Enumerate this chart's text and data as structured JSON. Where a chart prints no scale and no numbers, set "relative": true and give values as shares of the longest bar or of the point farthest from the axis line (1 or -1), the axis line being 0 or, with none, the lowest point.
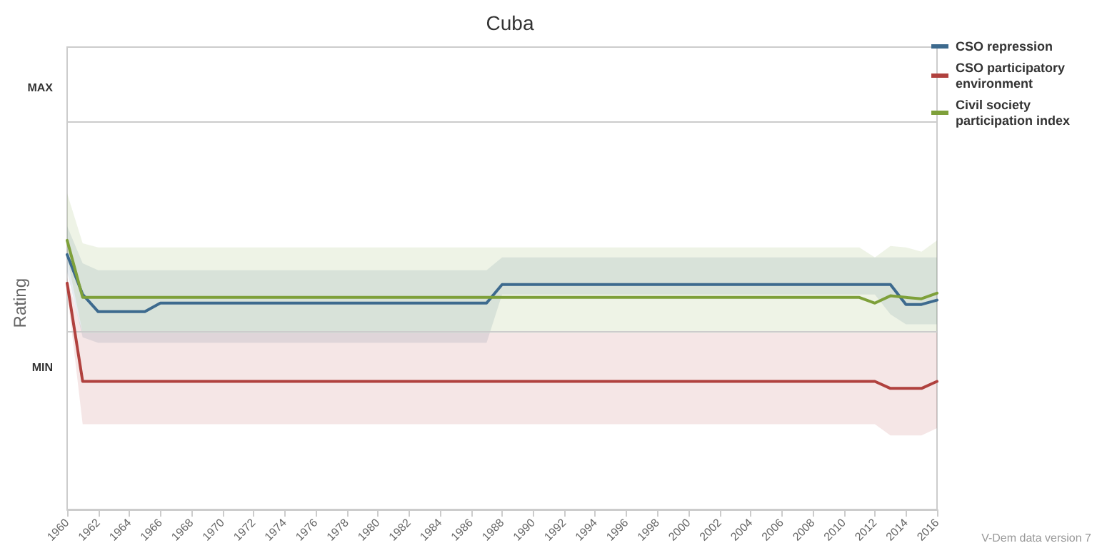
{
  "chart_data": {
    "type": "line",
    "title": "Cuba",
    "ylabel": "Rating",
    "relative": true,
    "annotations": [
      "V-Dem data version 7"
    ],
    "x": [
      1960,
      1961,
      1962,
      1963,
      1964,
      1965,
      1966,
      1967,
      1968,
      1969,
      1970,
      1971,
      1972,
      1973,
      1974,
      1975,
      1976,
      1977,
      1978,
      1979,
      1980,
      1981,
      1982,
      1983,
      1984,
      1985,
      1986,
      1987,
      1988,
      1989,
      1990,
      1991,
      1992,
      1993,
      1994,
      1995,
      1996,
      1997,
      1998,
      1999,
      2000,
      2001,
      2002,
      2003,
      2004,
      2005,
      2006,
      2007,
      2008,
      2009,
      2010,
      2011,
      2012,
      2013,
      2014,
      2015,
      2016
    ],
    "series": [
      {
        "name": "CSO repression",
        "color": "#3d6a8e",
        "values": [
          0.947,
          0.799,
          0.735,
          0.735,
          0.735,
          0.735,
          0.767,
          0.767,
          0.767,
          0.767,
          0.767,
          0.767,
          0.767,
          0.767,
          0.767,
          0.767,
          0.767,
          0.767,
          0.767,
          0.767,
          0.767,
          0.767,
          0.767,
          0.767,
          0.767,
          0.767,
          0.767,
          0.767,
          0.836,
          0.836,
          0.836,
          0.836,
          0.836,
          0.836,
          0.836,
          0.836,
          0.836,
          0.836,
          0.836,
          0.836,
          0.836,
          0.836,
          0.836,
          0.836,
          0.836,
          0.836,
          0.836,
          0.836,
          0.836,
          0.836,
          0.836,
          0.836,
          0.836,
          0.836,
          0.762,
          0.762,
          0.778
        ],
        "upper": [
          1.053,
          0.915,
          0.889,
          0.889,
          0.889,
          0.889,
          0.889,
          0.889,
          0.889,
          0.889,
          0.889,
          0.889,
          0.889,
          0.889,
          0.889,
          0.889,
          0.889,
          0.889,
          0.889,
          0.889,
          0.889,
          0.889,
          0.889,
          0.889,
          0.889,
          0.889,
          0.889,
          0.889,
          0.937,
          0.937,
          0.937,
          0.937,
          0.937,
          0.937,
          0.937,
          0.937,
          0.937,
          0.937,
          0.937,
          0.937,
          0.937,
          0.937,
          0.937,
          0.937,
          0.937,
          0.937,
          0.937,
          0.937,
          0.937,
          0.937,
          0.937,
          0.937,
          0.937,
          0.937,
          0.937,
          0.937,
          0.937
        ],
        "lower": [
          0.884,
          0.64,
          0.619,
          0.619,
          0.619,
          0.619,
          0.619,
          0.619,
          0.619,
          0.619,
          0.619,
          0.619,
          0.619,
          0.619,
          0.619,
          0.619,
          0.619,
          0.619,
          0.619,
          0.619,
          0.619,
          0.619,
          0.619,
          0.619,
          0.619,
          0.619,
          0.619,
          0.619,
          0.799,
          0.799,
          0.799,
          0.799,
          0.799,
          0.799,
          0.799,
          0.799,
          0.799,
          0.799,
          0.799,
          0.799,
          0.799,
          0.799,
          0.799,
          0.799,
          0.799,
          0.799,
          0.799,
          0.799,
          0.799,
          0.799,
          0.799,
          0.799,
          0.799,
          0.725,
          0.688,
          0.688,
          0.688
        ]
      },
      {
        "name": "CSO participatory environment",
        "color": "#b0413e",
        "values": [
          0.841,
          0.476,
          0.476,
          0.476,
          0.476,
          0.476,
          0.476,
          0.476,
          0.476,
          0.476,
          0.476,
          0.476,
          0.476,
          0.476,
          0.476,
          0.476,
          0.476,
          0.476,
          0.476,
          0.476,
          0.476,
          0.476,
          0.476,
          0.476,
          0.476,
          0.476,
          0.476,
          0.476,
          0.476,
          0.476,
          0.476,
          0.476,
          0.476,
          0.476,
          0.476,
          0.476,
          0.476,
          0.476,
          0.476,
          0.476,
          0.476,
          0.476,
          0.476,
          0.476,
          0.476,
          0.476,
          0.476,
          0.476,
          0.476,
          0.476,
          0.476,
          0.476,
          0.476,
          0.45,
          0.45,
          0.45,
          0.476
        ],
        "upper": [
          0.862,
          0.656,
          0.656,
          0.656,
          0.656,
          0.656,
          0.656,
          0.656,
          0.656,
          0.656,
          0.656,
          0.656,
          0.656,
          0.656,
          0.656,
          0.656,
          0.656,
          0.656,
          0.656,
          0.656,
          0.656,
          0.656,
          0.656,
          0.656,
          0.656,
          0.656,
          0.656,
          0.656,
          0.656,
          0.656,
          0.656,
          0.656,
          0.656,
          0.656,
          0.656,
          0.656,
          0.656,
          0.656,
          0.656,
          0.656,
          0.656,
          0.656,
          0.656,
          0.656,
          0.656,
          0.656,
          0.656,
          0.656,
          0.656,
          0.656,
          0.656,
          0.656,
          0.656,
          0.656,
          0.656,
          0.656,
          0.656
        ],
        "lower": [
          0.81,
          0.317,
          0.317,
          0.317,
          0.317,
          0.317,
          0.317,
          0.317,
          0.317,
          0.317,
          0.317,
          0.317,
          0.317,
          0.317,
          0.317,
          0.317,
          0.317,
          0.317,
          0.317,
          0.317,
          0.317,
          0.317,
          0.317,
          0.317,
          0.317,
          0.317,
          0.317,
          0.317,
          0.317,
          0.317,
          0.317,
          0.317,
          0.317,
          0.317,
          0.317,
          0.317,
          0.317,
          0.317,
          0.317,
          0.317,
          0.317,
          0.317,
          0.317,
          0.317,
          0.317,
          0.317,
          0.317,
          0.317,
          0.317,
          0.317,
          0.317,
          0.317,
          0.317,
          0.275,
          0.275,
          0.275,
          0.302
        ]
      },
      {
        "name": "Civil society participation index",
        "color": "#7ea03a",
        "values": [
          1,
          0.788,
          0.788,
          0.788,
          0.788,
          0.788,
          0.788,
          0.788,
          0.788,
          0.788,
          0.788,
          0.788,
          0.788,
          0.788,
          0.788,
          0.788,
          0.788,
          0.788,
          0.788,
          0.788,
          0.788,
          0.788,
          0.788,
          0.788,
          0.788,
          0.788,
          0.788,
          0.788,
          0.788,
          0.788,
          0.788,
          0.788,
          0.788,
          0.788,
          0.788,
          0.788,
          0.788,
          0.788,
          0.788,
          0.788,
          0.788,
          0.788,
          0.788,
          0.788,
          0.788,
          0.788,
          0.788,
          0.788,
          0.788,
          0.788,
          0.788,
          0.788,
          0.767,
          0.794,
          0.788,
          0.783,
          0.804
        ],
        "upper": [
          1.175,
          0.989,
          0.974,
          0.974,
          0.974,
          0.974,
          0.974,
          0.974,
          0.974,
          0.974,
          0.974,
          0.974,
          0.974,
          0.974,
          0.974,
          0.974,
          0.974,
          0.974,
          0.974,
          0.974,
          0.974,
          0.974,
          0.974,
          0.974,
          0.974,
          0.974,
          0.974,
          0.974,
          0.974,
          0.974,
          0.974,
          0.974,
          0.974,
          0.974,
          0.974,
          0.974,
          0.974,
          0.974,
          0.974,
          0.974,
          0.974,
          0.974,
          0.974,
          0.974,
          0.974,
          0.974,
          0.974,
          0.974,
          0.974,
          0.974,
          0.974,
          0.974,
          0.937,
          0.979,
          0.974,
          0.958,
          1
        ],
        "lower": [
          0.937,
          0.656,
          0.656,
          0.656,
          0.656,
          0.656,
          0.656,
          0.656,
          0.656,
          0.656,
          0.656,
          0.656,
          0.656,
          0.656,
          0.656,
          0.656,
          0.656,
          0.656,
          0.656,
          0.656,
          0.656,
          0.656,
          0.656,
          0.656,
          0.656,
          0.656,
          0.656,
          0.656,
          0.656,
          0.656,
          0.656,
          0.656,
          0.656,
          0.656,
          0.656,
          0.656,
          0.656,
          0.656,
          0.656,
          0.656,
          0.656,
          0.656,
          0.656,
          0.656,
          0.656,
          0.656,
          0.656,
          0.656,
          0.656,
          0.656,
          0.656,
          0.656,
          0.656,
          0.656,
          0.656,
          0.656,
          0.656
        ]
      }
    ],
    "xlim": [
      1960,
      2016
    ],
    "xticks": [
      1960,
      1962,
      1964,
      1966,
      1968,
      1970,
      1972,
      1974,
      1976,
      1978,
      1980,
      1982,
      1984,
      1986,
      1988,
      1990,
      1992,
      1994,
      1996,
      1998,
      2000,
      2002,
      2004,
      2006,
      2008,
      2010,
      2012,
      2014,
      2016
    ],
    "ref_lines": [
      {
        "axis": "y",
        "value": 1.444,
        "label": "MAX",
        "color": "#cccccc"
      },
      {
        "axis": "y",
        "value": 0.656,
        "label": "MIN",
        "color": "#cccccc"
      }
    ],
    "grid": false,
    "legend": "top right",
    "marker": "none",
    "line_style": "solid"
  }
}
